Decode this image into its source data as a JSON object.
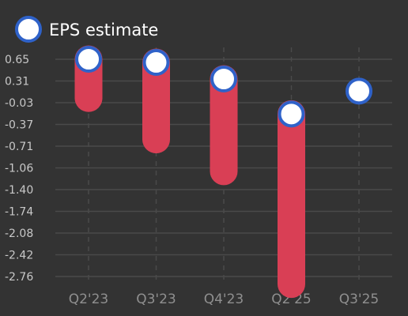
{
  "legend": {
    "label": "EPS estimate"
  },
  "colors": {
    "background": "#333333",
    "grid": "#4a4a4a",
    "range_bar": "#d93f55",
    "marker_fill": "#ffffff",
    "marker_stroke": "#2f62c9"
  },
  "chart_data": {
    "type": "range-bar",
    "title": "",
    "xlabel": "",
    "ylabel": "",
    "legend_position": "top-left",
    "grid": true,
    "y_ticks": [
      "0.65",
      "0.31",
      "-0.03",
      "-0.37",
      "-0.71",
      "-1.06",
      "-1.40",
      "-1.74",
      "-2.08",
      "-2.42",
      "-2.76"
    ],
    "ylim": [
      -2.76,
      0.65
    ],
    "categories": [
      "Q2'23",
      "Q3'23",
      "Q4'23",
      "Q2'25",
      "Q3'25"
    ],
    "series": [
      {
        "name": "EPS estimate",
        "values": [
          0.65,
          0.6,
          0.34,
          -0.21,
          0.15
        ]
      }
    ],
    "range_low": [
      0.04,
      -0.61,
      -1.11,
      -2.88,
      null
    ],
    "range_high": [
      0.65,
      0.6,
      0.34,
      -0.21,
      null
    ]
  }
}
